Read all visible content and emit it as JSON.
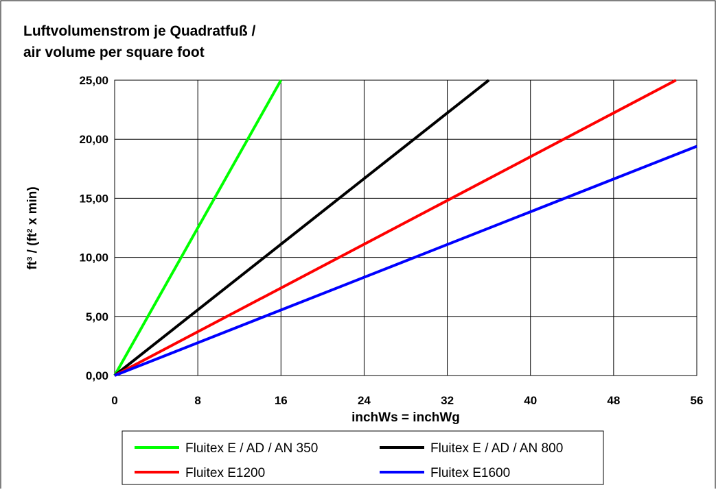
{
  "chart_data": {
    "type": "line",
    "title_line1": "Luftvolumenstrom je Quadratfuß /",
    "title_line2": "air volume per square foot",
    "xlabel": "inchWs = inchWg",
    "ylabel": "ft³ / (ft² x min)",
    "xlim": [
      0,
      56
    ],
    "ylim": [
      0,
      25
    ],
    "x_ticks": [
      0,
      8,
      16,
      24,
      32,
      40,
      48,
      56
    ],
    "x_tick_labels": [
      "0",
      "8",
      "16",
      "24",
      "32",
      "40",
      "48",
      "56"
    ],
    "y_ticks": [
      0,
      5,
      10,
      15,
      20,
      25
    ],
    "y_tick_labels": [
      "0,00",
      "5,00",
      "10,00",
      "15,00",
      "20,00",
      "25,00"
    ],
    "grid": true,
    "legend_position": "bottom",
    "series": [
      {
        "name": "Fluitex E / AD / AN 350",
        "color": "#00ff00",
        "x": [
          0,
          16
        ],
        "y": [
          0,
          25
        ]
      },
      {
        "name": "Fluitex E / AD / AN 800",
        "color": "#000000",
        "x": [
          0,
          36
        ],
        "y": [
          0,
          25
        ]
      },
      {
        "name": "Fluitex E1200",
        "color": "#ff0000",
        "x": [
          0,
          54
        ],
        "y": [
          0,
          25
        ]
      },
      {
        "name": "Fluitex E1600",
        "color": "#0000ff",
        "x": [
          0,
          56
        ],
        "y": [
          0,
          19.4
        ]
      }
    ]
  }
}
